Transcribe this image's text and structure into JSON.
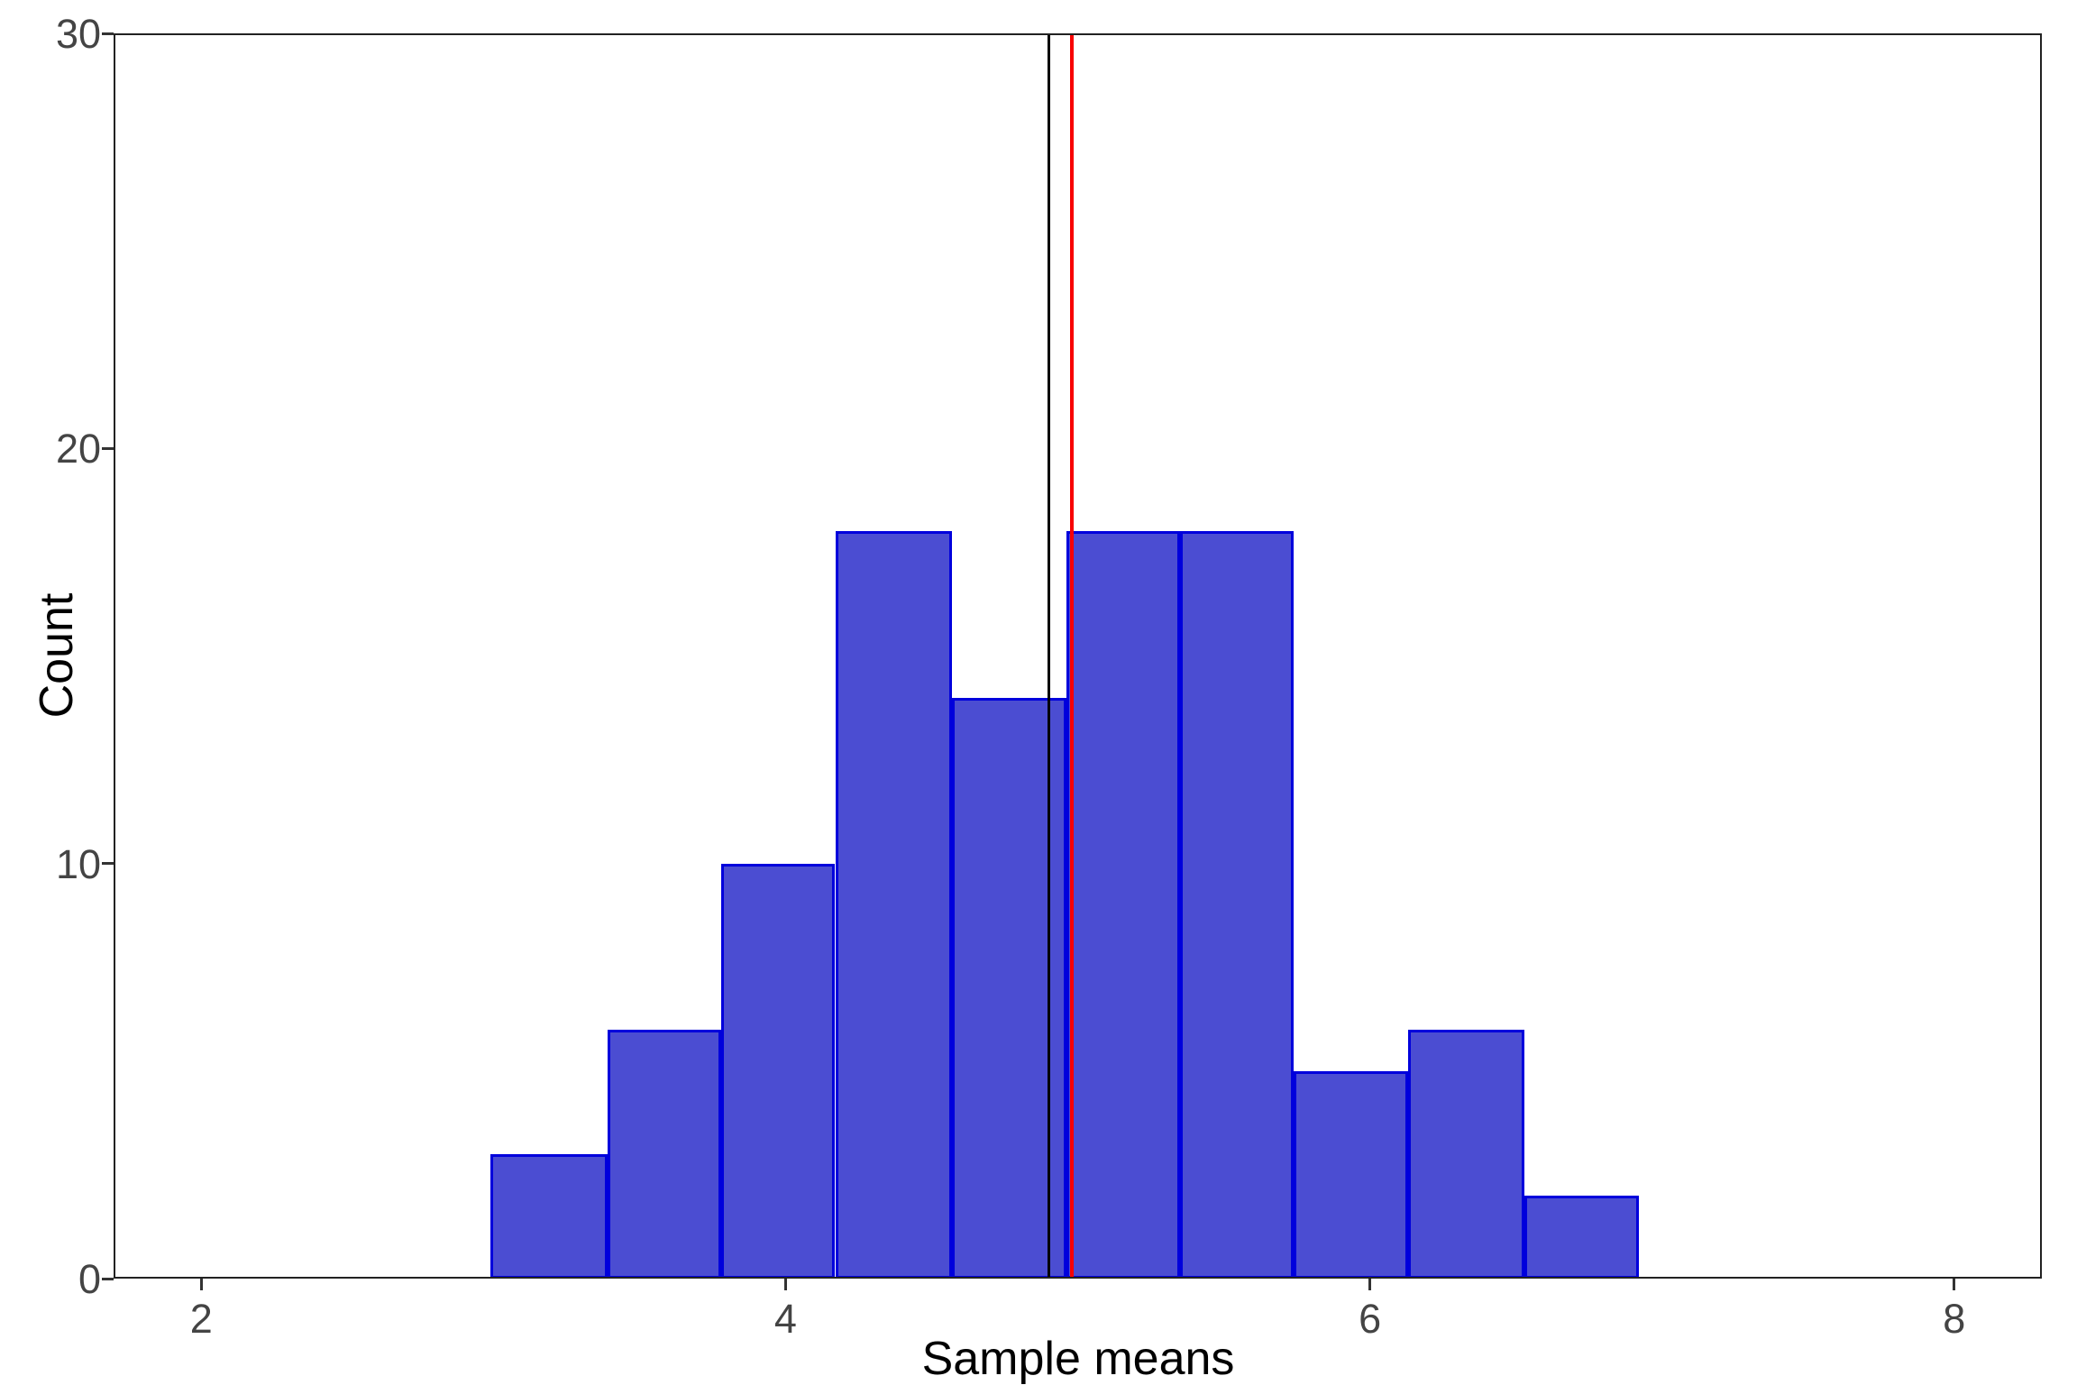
{
  "chart_data": {
    "type": "bar",
    "subtype": "histogram",
    "title": "",
    "xlabel": "Sample means",
    "ylabel": "Count",
    "xlim": [
      1.7,
      8.3
    ],
    "ylim": [
      0,
      30
    ],
    "grid": "off",
    "legend": "none",
    "x_ticks": [
      2,
      4,
      6,
      8
    ],
    "x_tick_labels": [
      "2",
      "4",
      "6",
      "8"
    ],
    "y_ticks": [
      0,
      10,
      20,
      30
    ],
    "y_tick_labels": [
      "0",
      "10",
      "20",
      "30"
    ],
    "bin_edges": [
      2.99,
      3.39,
      3.78,
      4.17,
      4.57,
      4.96,
      5.35,
      5.74,
      6.13,
      6.53,
      6.92
    ],
    "counts": [
      3,
      6,
      10,
      18,
      14,
      18,
      18,
      5,
      6,
      2
    ],
    "vlines": [
      {
        "name": "black-vline",
        "x": 4.9,
        "color": "#000000",
        "stroke_width": 3
      },
      {
        "name": "red-vline",
        "x": 4.98,
        "color": "#F80000",
        "stroke_width": 4
      }
    ],
    "colors": {
      "bar_fill": "#4B4DD2",
      "bar_stroke": "#0000DC",
      "bar_stroke_width": 3,
      "panel_border": "#222222",
      "tick_mark": "#333333",
      "tick_label": "#444444",
      "axis_title": "#000000",
      "background": "#FFFFFF"
    }
  }
}
